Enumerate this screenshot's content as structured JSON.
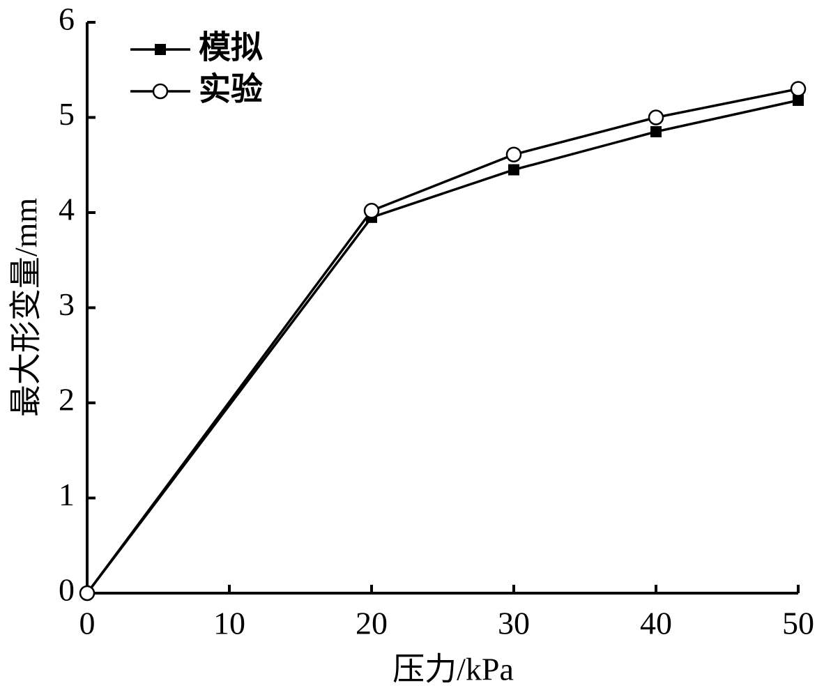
{
  "chart_data": {
    "type": "line",
    "xlabel": "压力/kPa",
    "ylabel": "最大形变量/mm",
    "x": [
      0,
      20,
      30,
      40,
      50
    ],
    "series": [
      {
        "name": "模拟",
        "color": "#000000",
        "marker": "square",
        "values": [
          0,
          3.95,
          4.45,
          4.85,
          5.18
        ]
      },
      {
        "name": "实验",
        "color": "#000000",
        "marker": "circle",
        "values": [
          0,
          4.02,
          4.61,
          5.0,
          5.3
        ]
      }
    ],
    "xlim": [
      0,
      50
    ],
    "xticks": [
      0,
      10,
      20,
      30,
      40,
      50
    ],
    "ylim": [
      0,
      6
    ],
    "yticks": [
      0,
      1,
      2,
      3,
      4,
      5,
      6
    ],
    "grid": false,
    "legend": "upper left"
  }
}
